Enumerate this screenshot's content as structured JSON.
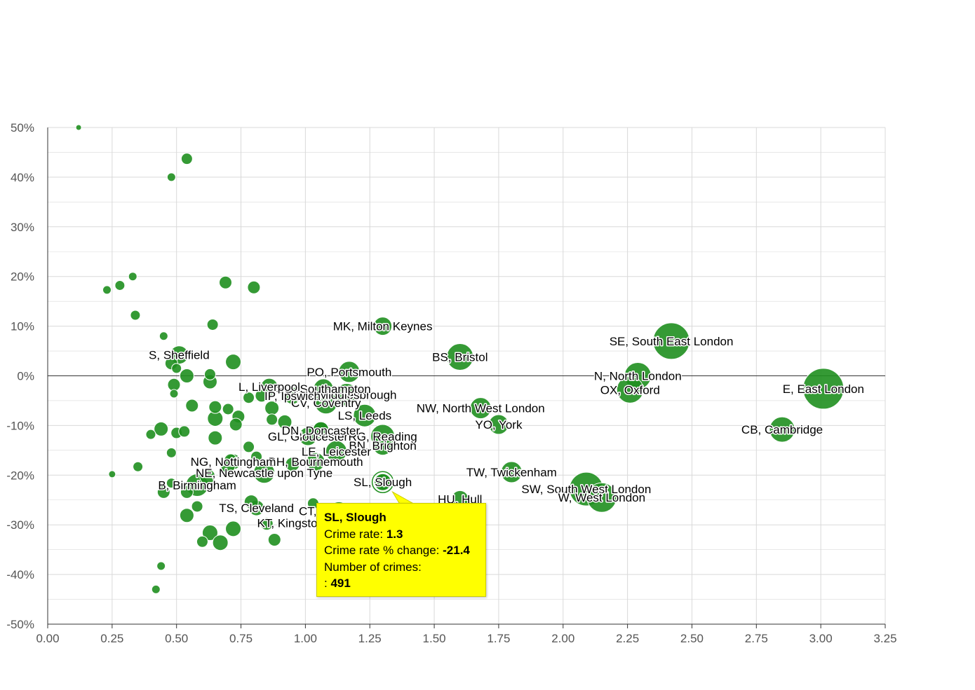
{
  "colors": {
    "bubble": "#1f8f1f",
    "bubble_stroke": "#ffffff",
    "grid": "#d9d9d9",
    "axis": "#333333",
    "zero_line": "#333333",
    "tooltip_bg": "#ffff00",
    "text": "#000000",
    "tick_text": "#555555"
  },
  "tooltip": {
    "title": "SL, Slough",
    "rate_label": "Crime rate:",
    "rate_value": "1.3",
    "change_label": "Crime rate % change:",
    "change_value": "-21.4",
    "count_label": "Number of crimes:",
    "count_prefix": ":",
    "count_value": "491"
  },
  "chart_data": {
    "type": "scatter",
    "bubble": true,
    "title": "",
    "xlabel": "",
    "ylabel": "",
    "xlim": [
      0,
      3.25
    ],
    "ylim": [
      -50,
      50
    ],
    "x_ticks": [
      "0.00",
      "0.25",
      "0.50",
      "0.75",
      "1.00",
      "1.25",
      "1.50",
      "1.75",
      "2.00",
      "2.25",
      "2.50",
      "2.75",
      "3.00",
      "3.25"
    ],
    "y_ticks": [
      "50%",
      "40%",
      "30%",
      "20%",
      "10%",
      "0%",
      "-10%",
      "-20%",
      "-30%",
      "-40%",
      "-50%"
    ],
    "grid": true,
    "highlighted": "SL, Slough",
    "points": [
      {
        "label": "E, East London",
        "x": 3.01,
        "y": -2.6,
        "size": 29
      },
      {
        "label": "SE, South East London",
        "x": 2.42,
        "y": 7.0,
        "size": 26
      },
      {
        "label": "CB, Cambridge",
        "x": 2.85,
        "y": -10.8,
        "size": 18
      },
      {
        "label": "N, North London",
        "x": 2.29,
        "y": 0.0,
        "size": 19
      },
      {
        "label": "OX, Oxford",
        "x": 2.26,
        "y": -2.8,
        "size": 19
      },
      {
        "label": "SW, South West London",
        "x": 2.09,
        "y": -22.8,
        "size": 24
      },
      {
        "label": "W, West London",
        "x": 2.15,
        "y": -24.5,
        "size": 21
      },
      {
        "label": "TW, Twickenham",
        "x": 1.8,
        "y": -19.4,
        "size": 15
      },
      {
        "label": "NW, North West London",
        "x": 1.68,
        "y": -6.5,
        "size": 15
      },
      {
        "label": "YO, York",
        "x": 1.75,
        "y": -9.8,
        "size": 14
      },
      {
        "label": "BS, Bristol",
        "x": 1.6,
        "y": 3.8,
        "size": 19
      },
      {
        "label": "MK, Milton Keynes",
        "x": 1.3,
        "y": 10.0,
        "size": 13
      },
      {
        "label": "HU, Hull",
        "x": 1.6,
        "y": -24.8,
        "size": 12
      },
      {
        "label": "SL, Slough",
        "x": 1.3,
        "y": -21.4,
        "size": 12
      },
      {
        "label": "LS, Leeds",
        "x": 1.23,
        "y": -8.0,
        "size": 16
      },
      {
        "label": "RG, Reading",
        "x": 1.3,
        "y": -12.2,
        "size": 17
      },
      {
        "label": "BN, Brighton",
        "x": 1.3,
        "y": -14.0,
        "size": 14
      },
      {
        "label": "PO, Portsmouth",
        "x": 1.17,
        "y": 0.8,
        "size": 15
      },
      {
        "label": "TS, Middlesbrough",
        "x": 1.16,
        "y": -3.8,
        "size": 16
      },
      {
        "label": "CV, Coventry",
        "x": 1.08,
        "y": -5.4,
        "size": 16
      },
      {
        "label": "SO, Southampton",
        "x": 1.07,
        "y": -2.6,
        "size": 14
      },
      {
        "label": "LE, Leicester",
        "x": 1.12,
        "y": -15.2,
        "size": 15
      },
      {
        "label": "GL, Gloucester",
        "x": 1.01,
        "y": -12.2,
        "size": 13
      },
      {
        "label": "DN, Doncaster",
        "x": 1.06,
        "y": -11.0,
        "size": 12
      },
      {
        "label": "BH, Bournemouth",
        "x": 1.04,
        "y": -17.3,
        "size": 13
      },
      {
        "label": "L, Liverpool",
        "x": 0.86,
        "y": -2.2,
        "size": 12
      },
      {
        "label": "IP, Ipswich",
        "x": 0.95,
        "y": -4.0,
        "size": 12
      },
      {
        "label": "NE, Newcastle upon Tyne",
        "x": 0.84,
        "y": -19.5,
        "size": 15
      },
      {
        "label": "NG, Nottingham",
        "x": 0.72,
        "y": -17.3,
        "size": 11
      },
      {
        "label": "B, Birmingham",
        "x": 0.58,
        "y": -22.0,
        "size": 16
      },
      {
        "label": "S, Sheffield",
        "x": 0.51,
        "y": 4.2,
        "size": 13
      },
      {
        "label": "TS, Cleveland",
        "x": 0.81,
        "y": -26.6,
        "size": 11
      },
      {
        "label": "CT, Canterbury",
        "x": 1.13,
        "y": -27.2,
        "size": 13
      },
      {
        "label": "KT, Kingston upon Thames",
        "x": 1.09,
        "y": -29.6,
        "size": 12
      },
      {
        "label": "",
        "x": 0.12,
        "y": 50.0,
        "size": 4
      },
      {
        "label": "",
        "x": 0.54,
        "y": 43.7,
        "size": 8
      },
      {
        "label": "",
        "x": 0.48,
        "y": 40.0,
        "size": 6
      },
      {
        "label": "",
        "x": 0.23,
        "y": 17.3,
        "size": 6
      },
      {
        "label": "",
        "x": 0.28,
        "y": 18.2,
        "size": 7
      },
      {
        "label": "",
        "x": 0.33,
        "y": 20.0,
        "size": 6
      },
      {
        "label": "",
        "x": 0.69,
        "y": 18.8,
        "size": 9
      },
      {
        "label": "",
        "x": 0.8,
        "y": 17.8,
        "size": 9
      },
      {
        "label": "",
        "x": 0.34,
        "y": 12.2,
        "size": 7
      },
      {
        "label": "",
        "x": 0.45,
        "y": 8.0,
        "size": 6
      },
      {
        "label": "",
        "x": 0.64,
        "y": 10.3,
        "size": 8
      },
      {
        "label": "",
        "x": 0.72,
        "y": 2.8,
        "size": 11
      },
      {
        "label": "",
        "x": 0.48,
        "y": 2.5,
        "size": 9
      },
      {
        "label": "",
        "x": 0.5,
        "y": 1.5,
        "size": 7
      },
      {
        "label": "",
        "x": 0.54,
        "y": 0.0,
        "size": 10
      },
      {
        "label": "",
        "x": 0.63,
        "y": 0.3,
        "size": 8
      },
      {
        "label": "",
        "x": 0.63,
        "y": -1.2,
        "size": 10
      },
      {
        "label": "",
        "x": 0.49,
        "y": -1.8,
        "size": 9
      },
      {
        "label": "",
        "x": 0.49,
        "y": -3.6,
        "size": 6
      },
      {
        "label": "",
        "x": 0.56,
        "y": -6.0,
        "size": 9
      },
      {
        "label": "",
        "x": 0.65,
        "y": -6.3,
        "size": 9
      },
      {
        "label": "",
        "x": 0.7,
        "y": -6.7,
        "size": 8
      },
      {
        "label": "",
        "x": 0.74,
        "y": -8.2,
        "size": 9
      },
      {
        "label": "",
        "x": 0.65,
        "y": -8.6,
        "size": 11
      },
      {
        "label": "",
        "x": 0.73,
        "y": -9.8,
        "size": 9
      },
      {
        "label": "",
        "x": 0.87,
        "y": -6.5,
        "size": 10
      },
      {
        "label": "",
        "x": 0.87,
        "y": -8.8,
        "size": 8
      },
      {
        "label": "",
        "x": 0.92,
        "y": -9.3,
        "size": 10
      },
      {
        "label": "",
        "x": 0.78,
        "y": -4.4,
        "size": 8
      },
      {
        "label": "",
        "x": 0.83,
        "y": -4.0,
        "size": 9
      },
      {
        "label": "",
        "x": 0.44,
        "y": -10.7,
        "size": 10
      },
      {
        "label": "",
        "x": 0.4,
        "y": -11.8,
        "size": 7
      },
      {
        "label": "",
        "x": 0.5,
        "y": -11.5,
        "size": 8
      },
      {
        "label": "",
        "x": 0.53,
        "y": -11.2,
        "size": 8
      },
      {
        "label": "",
        "x": 0.65,
        "y": -12.5,
        "size": 10
      },
      {
        "label": "",
        "x": 0.78,
        "y": -14.3,
        "size": 8
      },
      {
        "label": "",
        "x": 0.48,
        "y": -15.5,
        "size": 7
      },
      {
        "label": "",
        "x": 0.35,
        "y": -18.3,
        "size": 7
      },
      {
        "label": "",
        "x": 0.25,
        "y": -19.8,
        "size": 5
      },
      {
        "label": "",
        "x": 0.71,
        "y": -17.0,
        "size": 9
      },
      {
        "label": "",
        "x": 0.7,
        "y": -18.2,
        "size": 10
      },
      {
        "label": "",
        "x": 0.81,
        "y": -16.3,
        "size": 8
      },
      {
        "label": "",
        "x": 0.95,
        "y": -17.8,
        "size": 10
      },
      {
        "label": "",
        "x": 1.06,
        "y": -10.8,
        "size": 11
      },
      {
        "label": "",
        "x": 0.62,
        "y": -20.3,
        "size": 11
      },
      {
        "label": "",
        "x": 0.48,
        "y": -21.6,
        "size": 7
      },
      {
        "label": "",
        "x": 0.45,
        "y": -23.4,
        "size": 9
      },
      {
        "label": "",
        "x": 0.54,
        "y": -23.4,
        "size": 9
      },
      {
        "label": "",
        "x": 0.58,
        "y": -26.3,
        "size": 8
      },
      {
        "label": "",
        "x": 0.54,
        "y": -28.1,
        "size": 10
      },
      {
        "label": "",
        "x": 0.79,
        "y": -25.4,
        "size": 10
      },
      {
        "label": "",
        "x": 1.03,
        "y": -25.7,
        "size": 8
      },
      {
        "label": "",
        "x": 0.72,
        "y": -30.8,
        "size": 11
      },
      {
        "label": "",
        "x": 0.63,
        "y": -31.6,
        "size": 11
      },
      {
        "label": "",
        "x": 0.85,
        "y": -29.8,
        "size": 9
      },
      {
        "label": "",
        "x": 0.67,
        "y": -33.6,
        "size": 11
      },
      {
        "label": "",
        "x": 0.6,
        "y": -33.4,
        "size": 8
      },
      {
        "label": "",
        "x": 0.88,
        "y": -33.0,
        "size": 9
      },
      {
        "label": "",
        "x": 0.44,
        "y": -38.3,
        "size": 6
      },
      {
        "label": "",
        "x": 0.42,
        "y": -43.0,
        "size": 6
      }
    ]
  }
}
